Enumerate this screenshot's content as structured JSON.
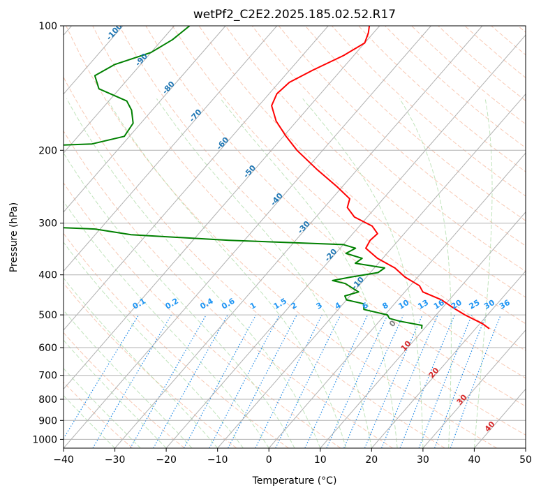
{
  "chart_data": {
    "type": "line",
    "title": "wetPf2_C2E2.2025.185.02.52.R17",
    "xlabel": "Temperature (°C)",
    "ylabel": "Pressure (hPa)",
    "xlim": [
      -40,
      50
    ],
    "ylim": [
      1050,
      100
    ],
    "y_scale": "log",
    "skew": "skew-T log-P",
    "grid": true,
    "x_ticks": [
      -40,
      -30,
      -20,
      -10,
      0,
      10,
      20,
      30,
      40,
      50
    ],
    "y_ticks": [
      100,
      200,
      300,
      400,
      500,
      600,
      700,
      800,
      900,
      1000
    ],
    "series": [
      {
        "role": "temperature",
        "color": "#ff0000",
        "points": [
          {
            "p": 100,
            "t": -52
          },
          {
            "p": 104,
            "t": -51
          },
          {
            "p": 110,
            "t": -50
          },
          {
            "p": 118,
            "t": -52
          },
          {
            "p": 128,
            "t": -55.5
          },
          {
            "p": 137,
            "t": -58
          },
          {
            "p": 146,
            "t": -58.5
          },
          {
            "p": 156,
            "t": -57.5
          },
          {
            "p": 170,
            "t": -54
          },
          {
            "p": 185,
            "t": -49.5
          },
          {
            "p": 200,
            "t": -45
          },
          {
            "p": 222,
            "t": -38
          },
          {
            "p": 245,
            "t": -31
          },
          {
            "p": 262,
            "t": -26.5
          },
          {
            "p": 275,
            "t": -25.5
          },
          {
            "p": 290,
            "t": -22.5
          },
          {
            "p": 305,
            "t": -17.5
          },
          {
            "p": 318,
            "t": -15.2
          },
          {
            "p": 330,
            "t": -15.5
          },
          {
            "p": 345,
            "t": -15
          },
          {
            "p": 365,
            "t": -11
          },
          {
            "p": 385,
            "t": -6
          },
          {
            "p": 405,
            "t": -2.5
          },
          {
            "p": 425,
            "t": 1.8
          },
          {
            "p": 440,
            "t": 3.5
          },
          {
            "p": 460,
            "t": 8.5
          },
          {
            "p": 480,
            "t": 12
          },
          {
            "p": 500,
            "t": 15.6
          },
          {
            "p": 525,
            "t": 20.5
          },
          {
            "p": 540,
            "t": 22.7
          }
        ]
      },
      {
        "role": "dewpoint",
        "color": "#008000",
        "points": [
          {
            "p": 100,
            "t": -87
          },
          {
            "p": 108,
            "t": -88
          },
          {
            "p": 116,
            "t": -90
          },
          {
            "p": 124,
            "t": -95
          },
          {
            "p": 132,
            "t": -97
          },
          {
            "p": 142,
            "t": -94
          },
          {
            "p": 152,
            "t": -86.5
          },
          {
            "p": 160,
            "t": -84
          },
          {
            "p": 172,
            "t": -81.5
          },
          {
            "p": 185,
            "t": -81
          },
          {
            "p": 193,
            "t": -86
          },
          {
            "p": 197,
            "t": -104
          },
          {
            "p": 215,
            "t": -108
          },
          {
            "p": 235,
            "t": -114
          },
          {
            "p": 255,
            "t": -118
          },
          {
            "p": 270,
            "t": -123.5
          },
          {
            "p": 278,
            "t": -126
          },
          {
            "p": 282,
            "t": -101
          },
          {
            "p": 290,
            "t": -89.5
          },
          {
            "p": 298,
            "t": -107
          },
          {
            "p": 300,
            "t": -100
          },
          {
            "p": 310,
            "t": -71
          },
          {
            "p": 320,
            "t": -63
          },
          {
            "p": 330,
            "t": -43
          },
          {
            "p": 338,
            "t": -20
          },
          {
            "p": 345,
            "t": -17
          },
          {
            "p": 355,
            "t": -18
          },
          {
            "p": 365,
            "t": -14
          },
          {
            "p": 375,
            "t": -14.5
          },
          {
            "p": 385,
            "t": -8
          },
          {
            "p": 395,
            "t": -8.5
          },
          {
            "p": 405,
            "t": -13
          },
          {
            "p": 413,
            "t": -16
          },
          {
            "p": 420,
            "t": -13
          },
          {
            "p": 430,
            "t": -11
          },
          {
            "p": 440,
            "t": -9
          },
          {
            "p": 450,
            "t": -11
          },
          {
            "p": 460,
            "t": -10
          },
          {
            "p": 470,
            "t": -6
          },
          {
            "p": 485,
            "t": -5
          },
          {
            "p": 500,
            "t": 0.5
          },
          {
            "p": 510,
            "t": 1.5
          },
          {
            "p": 518,
            "t": 4
          },
          {
            "p": 530,
            "t": 9
          },
          {
            "p": 540,
            "t": 9.5
          }
        ]
      }
    ],
    "isotherm_labels": [
      "-100",
      "-90",
      "-80",
      "-70",
      "-60",
      "-50",
      "-40",
      "-30",
      "-20",
      "-10",
      "0",
      "10",
      "20",
      "30",
      "40"
    ],
    "mixing_ratio_labels": [
      "0.1",
      "0.2",
      "0.4",
      "0.6",
      "1",
      "1.5",
      "2",
      "3",
      "4",
      "6",
      "8",
      "10",
      "13",
      "16",
      "20",
      "25",
      "30",
      "36"
    ],
    "colors": {
      "axes": "#000000",
      "grid": "#b0b0b0",
      "dry_adiabat": "#f4a582",
      "moist_adiabat": "#a6d8a0",
      "mixing_ratio": "#1e88e5",
      "isotherm_label_cold": "#1f77b4",
      "isotherm_label_warm": "#d62728",
      "zero_isotherm_label": "#808080"
    }
  }
}
